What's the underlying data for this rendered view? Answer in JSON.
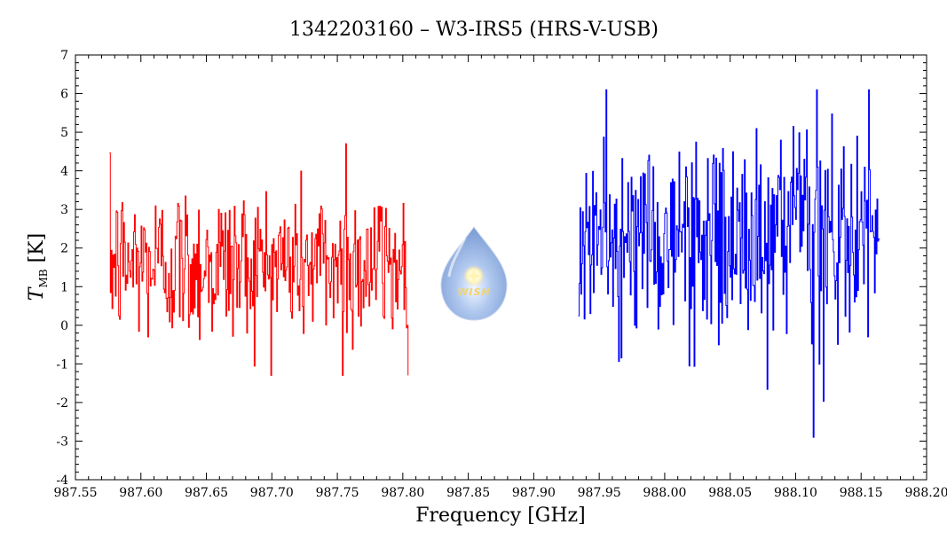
{
  "chart_data": {
    "type": "line",
    "title": "1342203160 – W3-IRS5 (HRS-V-USB)",
    "xlabel": "Frequency [GHz]",
    "ylabel_main": "T",
    "ylabel_sub": "MB",
    "ylabel_unit": "[K]",
    "xlim": [
      987.55,
      988.2
    ],
    "ylim": [
      -4,
      7
    ],
    "xticks": [
      "987.55",
      "987.60",
      "987.65",
      "987.70",
      "987.75",
      "987.80",
      "987.85",
      "987.90",
      "987.95",
      "988.00",
      "988.05",
      "988.10",
      "988.15",
      "988.20"
    ],
    "yticks": [
      "-4",
      "-3",
      "-2",
      "-1",
      "0",
      "1",
      "2",
      "3",
      "4",
      "5",
      "6",
      "7"
    ],
    "grid": false,
    "logo_text": "WISH",
    "series": [
      {
        "color": "#ff0000",
        "x_start": 987.576,
        "x_end": 987.804,
        "points": 360,
        "mean": 1.6,
        "peak_max": 4.7,
        "peak_min": -1.3
      },
      {
        "color": "#0000ff",
        "x_start": 987.934,
        "x_end": 988.164,
        "points": 360,
        "mean": 2.2,
        "peak_max": 6.1,
        "peak_min": -2.9
      }
    ]
  }
}
